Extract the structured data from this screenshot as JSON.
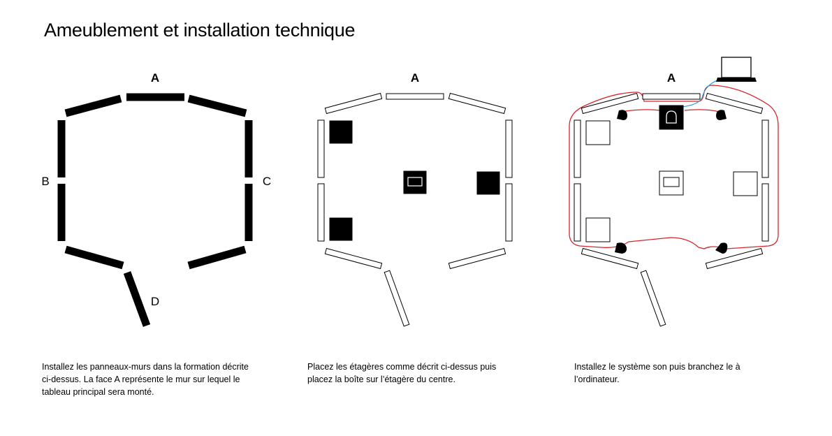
{
  "title": "Ameublement et installation technique",
  "panel1": {
    "label_a": "A",
    "label_b": "B",
    "label_c": "C",
    "label_d": "D"
  },
  "panel2": {
    "label_a": "A"
  },
  "panel3": {
    "label_a": "A"
  },
  "captions": {
    "step1": "Installez les panneaux-murs dans la formation décrite ci-dessus. La face A représente le mur sur lequel le tableau principal sera monté.",
    "step2": "Placez les étagères comme décrit ci-dessus puis placez la boîte sur l’étagère du centre.",
    "step3": "Installez le système son puis branchez le à l’ordinateur."
  },
  "colors": {
    "cable_power": "#d8242b",
    "cable_data": "#2a9fd8"
  },
  "icons": [
    "laptop-icon",
    "speaker-icon",
    "box-icon"
  ]
}
